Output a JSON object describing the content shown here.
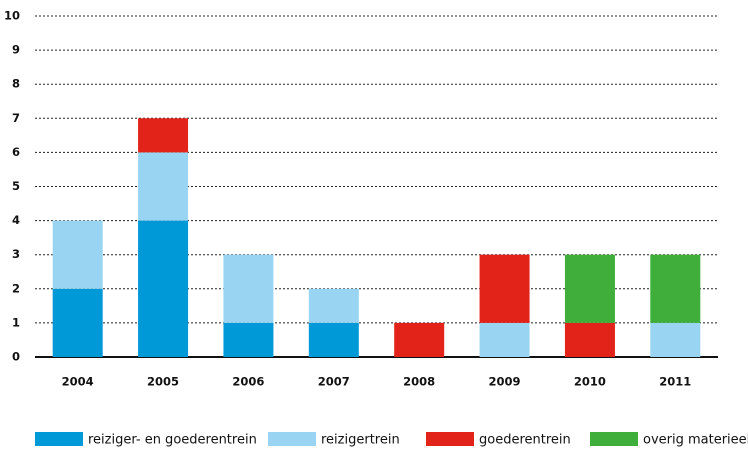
{
  "chart_data": {
    "type": "stacked-bar",
    "categories": [
      "2004",
      "2005",
      "2006",
      "2007",
      "2008",
      "2009",
      "2010",
      "2011"
    ],
    "series": [
      {
        "name": "reiziger- en goederentrein",
        "color": "#0099d8",
        "values": [
          2,
          4,
          1,
          1,
          0,
          0,
          0,
          0
        ]
      },
      {
        "name": "reizigertrein",
        "color": "#99d4f2",
        "values": [
          2,
          2,
          2,
          1,
          0,
          1,
          0,
          1
        ]
      },
      {
        "name": "goederentrein",
        "color": "#e2231a",
        "values": [
          0,
          1,
          0,
          0,
          1,
          2,
          1,
          0
        ]
      },
      {
        "name": "overig materieel",
        "color": "#3fae3a",
        "values": [
          0,
          0,
          0,
          0,
          0,
          0,
          2,
          2
        ]
      }
    ],
    "ylim": [
      0,
      10
    ],
    "yticks": [
      0,
      1,
      2,
      3,
      4,
      5,
      6,
      7,
      8,
      9,
      10
    ],
    "grid": true,
    "legend": "bottom"
  }
}
